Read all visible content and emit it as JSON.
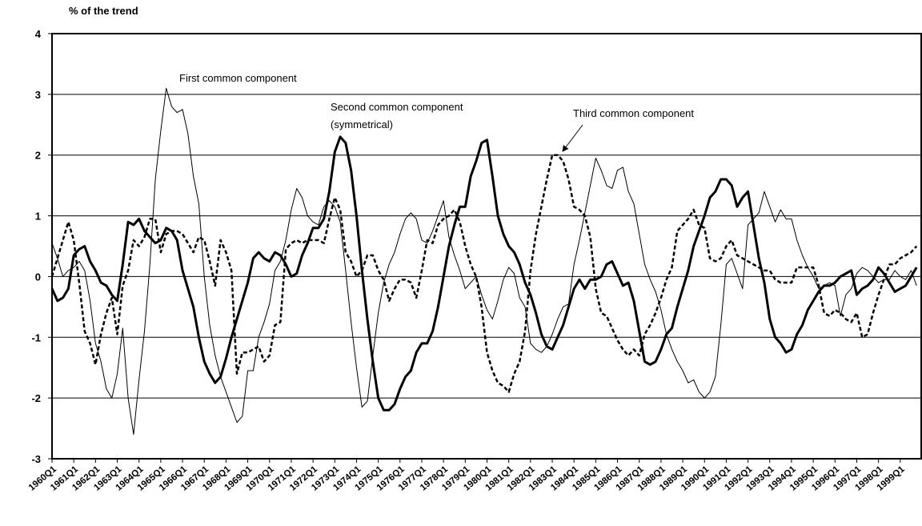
{
  "chart_data": {
    "type": "line",
    "y_axis_label": "% of the trend",
    "categories": [
      "1960Q1",
      null,
      null,
      null,
      "1961Q1",
      null,
      null,
      null,
      "1962Q1",
      null,
      null,
      null,
      "1963Q1",
      null,
      null,
      null,
      "1964Q1",
      null,
      null,
      null,
      "1965Q1",
      null,
      null,
      null,
      "1966Q1",
      null,
      null,
      null,
      "1967Q1",
      null,
      null,
      null,
      "1968Q1",
      null,
      null,
      null,
      "1969Q1",
      null,
      null,
      null,
      "1970Q1",
      null,
      null,
      null,
      "1971Q1",
      null,
      null,
      null,
      "1972Q1",
      null,
      null,
      null,
      "1973Q1",
      null,
      null,
      null,
      "1974Q1",
      null,
      null,
      null,
      "1975Q1",
      null,
      null,
      null,
      "1976Q1",
      null,
      null,
      null,
      "1977Q1",
      null,
      null,
      null,
      "1978Q1",
      null,
      null,
      null,
      "1979Q1",
      null,
      null,
      null,
      "1980Q1",
      null,
      null,
      null,
      "1981Q1",
      null,
      null,
      null,
      "1982Q1",
      null,
      null,
      null,
      "1983Q1",
      null,
      null,
      null,
      "1984Q1",
      null,
      null,
      null,
      "1985Q1",
      null,
      null,
      null,
      "1986Q1",
      null,
      null,
      null,
      "1987Q1",
      null,
      null,
      null,
      "1988Q1",
      null,
      null,
      null,
      "1989Q1",
      null,
      null,
      null,
      "1990Q1",
      null,
      null,
      null,
      "1991Q1",
      null,
      null,
      null,
      "1992Q1",
      null,
      null,
      null,
      "1993Q1",
      null,
      null,
      null,
      "1994Q1",
      null,
      null,
      null,
      "1995Q1",
      null,
      null,
      null,
      "1996Q1",
      null,
      null,
      null,
      "1997Q1",
      null,
      null,
      null,
      "1998Q1",
      null,
      null,
      null,
      "1999Q1",
      null,
      null,
      null
    ],
    "series": [
      {
        "name": "First common component",
        "color": "#000000",
        "line_style": "solid",
        "line_width": 1,
        "values": [
          0.55,
          0.3,
          0.0,
          0.1,
          0.15,
          0.25,
          0.1,
          -0.4,
          -1.1,
          -1.4,
          -1.85,
          -2.0,
          -1.6,
          -0.85,
          -2.0,
          -2.6,
          -1.7,
          -0.9,
          0.2,
          1.6,
          2.4,
          3.1,
          2.8,
          2.7,
          2.75,
          2.35,
          1.65,
          1.2,
          0.0,
          -0.8,
          -1.3,
          -1.65,
          -1.9,
          -2.15,
          -2.4,
          -2.3,
          -1.55,
          -1.55,
          -1.0,
          -0.75,
          -0.45,
          0.1,
          0.25,
          0.6,
          1.1,
          1.45,
          1.3,
          1.0,
          0.9,
          0.85,
          1.15,
          1.25,
          1.15,
          0.9,
          0.1,
          -0.75,
          -1.5,
          -2.15,
          -2.05,
          -1.3,
          -0.6,
          -0.1,
          0.2,
          0.4,
          0.7,
          0.95,
          1.05,
          0.95,
          0.6,
          0.55,
          0.75,
          1.0,
          1.25,
          0.65,
          0.35,
          0.1,
          -0.2,
          -0.1,
          0.0,
          -0.3,
          -0.55,
          -0.7,
          -0.4,
          -0.05,
          0.15,
          0.05,
          -0.35,
          -0.5,
          -1.1,
          -1.2,
          -1.25,
          -1.15,
          -0.95,
          -0.7,
          -0.5,
          -0.45,
          0.2,
          0.6,
          1.05,
          1.5,
          1.95,
          1.75,
          1.5,
          1.45,
          1.75,
          1.8,
          1.4,
          1.2,
          0.7,
          0.2,
          -0.05,
          -0.25,
          -0.55,
          -0.95,
          -1.2,
          -1.4,
          -1.55,
          -1.75,
          -1.7,
          -1.9,
          -2.0,
          -1.9,
          -1.65,
          -0.8,
          0.2,
          0.3,
          0.05,
          -0.2,
          0.85,
          0.95,
          1.05,
          1.4,
          1.15,
          0.9,
          1.1,
          0.95,
          0.95,
          0.6,
          0.35,
          0.15,
          0.0,
          -0.2,
          -0.15,
          -0.1,
          -0.15,
          -0.65,
          -0.3,
          -0.2,
          0.05,
          0.15,
          0.1,
          0.0,
          -0.1,
          -0.05,
          -0.05,
          0.1,
          0.0,
          -0.05,
          0.1,
          -0.15
        ]
      },
      {
        "name": "Second common component (symmetrical)",
        "color": "#000000",
        "line_style": "solid",
        "line_width": 3,
        "values": [
          -0.2,
          -0.4,
          -0.35,
          -0.2,
          0.35,
          0.45,
          0.5,
          0.25,
          0.1,
          -0.1,
          -0.15,
          -0.3,
          -0.4,
          0.2,
          0.9,
          0.85,
          0.95,
          0.75,
          0.65,
          0.55,
          0.6,
          0.8,
          0.75,
          0.6,
          0.1,
          -0.2,
          -0.5,
          -1.0,
          -1.4,
          -1.6,
          -1.75,
          -1.65,
          -1.35,
          -1.0,
          -0.7,
          -0.4,
          -0.1,
          0.3,
          0.4,
          0.3,
          0.25,
          0.4,
          0.35,
          0.2,
          0.0,
          0.05,
          0.35,
          0.55,
          0.8,
          0.8,
          0.95,
          1.4,
          2.05,
          2.3,
          2.2,
          1.75,
          1.0,
          0.1,
          -0.7,
          -1.4,
          -2.0,
          -2.2,
          -2.2,
          -2.1,
          -1.85,
          -1.65,
          -1.55,
          -1.25,
          -1.1,
          -1.1,
          -0.9,
          -0.5,
          0.0,
          0.5,
          0.85,
          1.15,
          1.15,
          1.65,
          1.9,
          2.2,
          2.25,
          1.65,
          1.0,
          0.7,
          0.5,
          0.4,
          0.2,
          -0.1,
          -0.3,
          -0.6,
          -0.95,
          -1.15,
          -1.2,
          -1.0,
          -0.8,
          -0.5,
          -0.2,
          -0.05,
          -0.2,
          -0.05,
          -0.05,
          0.0,
          0.2,
          0.25,
          0.05,
          -0.15,
          -0.1,
          -0.4,
          -0.9,
          -1.4,
          -1.45,
          -1.4,
          -1.2,
          -0.95,
          -0.85,
          -0.5,
          -0.2,
          0.1,
          0.5,
          0.75,
          1.0,
          1.3,
          1.4,
          1.6,
          1.6,
          1.5,
          1.15,
          1.3,
          1.4,
          0.85,
          0.3,
          -0.1,
          -0.7,
          -1.0,
          -1.1,
          -1.25,
          -1.2,
          -0.95,
          -0.8,
          -0.55,
          -0.4,
          -0.25,
          -0.15,
          -0.15,
          -0.1,
          0.0,
          0.05,
          0.1,
          -0.3,
          -0.2,
          -0.15,
          -0.05,
          0.15,
          0.05,
          -0.1,
          -0.25,
          -0.2,
          -0.15,
          0.0,
          0.15
        ]
      },
      {
        "name": "Third common component",
        "color": "#000000",
        "line_style": "dashed",
        "line_width": 2.5,
        "values": [
          0.0,
          0.3,
          0.6,
          0.9,
          0.6,
          -0.1,
          -0.9,
          -1.1,
          -1.45,
          -0.95,
          -0.6,
          -0.35,
          -0.95,
          -0.15,
          0.1,
          0.6,
          0.5,
          0.65,
          0.95,
          0.95,
          0.4,
          0.7,
          0.75,
          0.75,
          0.7,
          0.55,
          0.4,
          0.65,
          0.6,
          0.25,
          -0.15,
          0.6,
          0.4,
          0.1,
          -1.6,
          -1.25,
          -1.25,
          -1.2,
          -1.15,
          -1.4,
          -1.3,
          -0.8,
          -0.75,
          0.45,
          0.55,
          0.6,
          0.55,
          0.6,
          0.6,
          0.6,
          0.55,
          0.95,
          1.3,
          1.1,
          0.4,
          0.25,
          0.0,
          0.1,
          0.35,
          0.35,
          0.1,
          -0.05,
          -0.4,
          -0.2,
          -0.05,
          -0.05,
          -0.1,
          -0.35,
          0.1,
          0.6,
          0.55,
          0.85,
          0.95,
          1.0,
          1.1,
          0.9,
          0.5,
          0.2,
          0.0,
          -0.5,
          -1.25,
          -1.55,
          -1.75,
          -1.8,
          -1.9,
          -1.6,
          -1.4,
          -0.9,
          0.1,
          0.7,
          1.15,
          1.6,
          2.0,
          2.0,
          1.9,
          1.6,
          1.15,
          1.1,
          1.0,
          0.65,
          -0.2,
          -0.6,
          -0.65,
          -0.85,
          -1.05,
          -1.2,
          -1.3,
          -1.2,
          -1.3,
          -0.95,
          -0.8,
          -0.6,
          -0.35,
          -0.05,
          0.15,
          0.75,
          0.85,
          0.95,
          1.1,
          0.85,
          0.8,
          0.3,
          0.25,
          0.3,
          0.5,
          0.6,
          0.35,
          0.3,
          0.25,
          0.2,
          0.15,
          0.1,
          0.1,
          -0.05,
          -0.1,
          -0.1,
          -0.1,
          0.15,
          0.15,
          0.15,
          0.15,
          -0.15,
          -0.6,
          -0.65,
          -0.55,
          -0.6,
          -0.7,
          -0.75,
          -0.6,
          -1.0,
          -0.95,
          -0.6,
          -0.3,
          -0.05,
          0.2,
          0.2,
          0.3,
          0.35,
          0.4,
          0.5
        ]
      }
    ],
    "ylim": [
      -3,
      4
    ],
    "yticks": [
      -3,
      -2,
      -1,
      0,
      1,
      2,
      3,
      4
    ],
    "grid": true
  }
}
